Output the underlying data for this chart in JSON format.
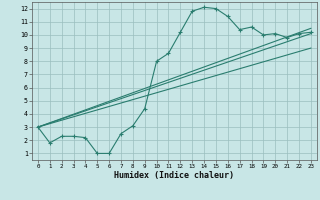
{
  "xlabel": "Humidex (Indice chaleur)",
  "xlim": [
    -0.5,
    23.5
  ],
  "ylim": [
    0.5,
    12.5
  ],
  "yticks": [
    1,
    2,
    3,
    4,
    5,
    6,
    7,
    8,
    9,
    10,
    11,
    12
  ],
  "xticks": [
    0,
    1,
    2,
    3,
    4,
    5,
    6,
    7,
    8,
    9,
    10,
    11,
    12,
    13,
    14,
    15,
    16,
    17,
    18,
    19,
    20,
    21,
    22,
    23
  ],
  "bg_color": "#c8e6e6",
  "line_color": "#2a7d6f",
  "grid_color": "#9bbfbf",
  "line1_x": [
    0,
    1,
    2,
    3,
    4,
    5,
    6,
    7,
    8,
    9,
    10,
    11,
    12,
    13,
    14,
    15,
    16,
    17,
    18,
    19,
    20,
    21,
    22,
    23
  ],
  "line1_y": [
    3.0,
    1.8,
    2.3,
    2.3,
    2.2,
    1.0,
    1.0,
    2.5,
    3.1,
    4.4,
    8.0,
    8.6,
    10.2,
    11.8,
    12.1,
    12.0,
    11.4,
    10.4,
    10.6,
    10.0,
    10.1,
    9.8,
    10.1,
    10.2
  ],
  "line2_x": [
    0,
    23
  ],
  "line2_y": [
    3.0,
    10.5
  ],
  "line3_x": [
    0,
    23
  ],
  "line3_y": [
    3.0,
    10.1
  ],
  "line4_x": [
    0,
    23
  ],
  "line4_y": [
    3.0,
    9.0
  ]
}
